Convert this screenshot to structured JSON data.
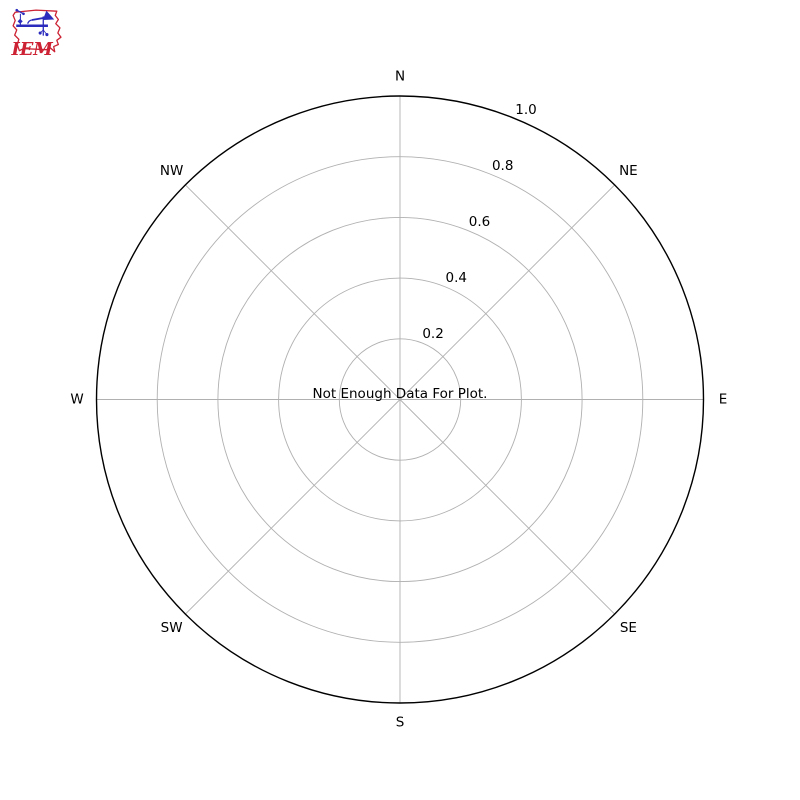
{
  "logo": {
    "text": "IEM",
    "colors": {
      "outline_red": "#cc2233",
      "instrument_blue": "#2b2bbd"
    }
  },
  "chart_data": {
    "type": "polar",
    "subtype": "windrose",
    "title": "",
    "message": "Not Enough Data For Plot.",
    "directions": [
      {
        "label": "N"
      },
      {
        "label": "NE"
      },
      {
        "label": "E"
      },
      {
        "label": "SE"
      },
      {
        "label": "S"
      },
      {
        "label": "SW"
      },
      {
        "label": "W"
      },
      {
        "label": "NW"
      }
    ],
    "radial_ticks": [
      {
        "value": 0.2,
        "label": "0.2"
      },
      {
        "value": 0.4,
        "label": "0.4"
      },
      {
        "value": 0.6,
        "label": "0.6"
      },
      {
        "value": 0.8,
        "label": "0.8"
      },
      {
        "value": 1.0,
        "label": "1.0"
      }
    ],
    "r_max": 1.0,
    "rlabel_angle_deg": 22.5,
    "grid": true,
    "series": [],
    "colors": {
      "grid": "#b0b0b0",
      "spine": "#000000",
      "text": "#000000",
      "background": "#ffffff"
    }
  }
}
